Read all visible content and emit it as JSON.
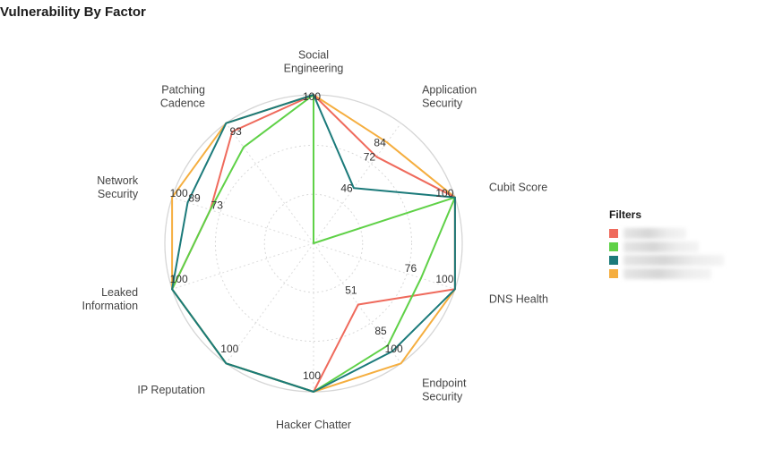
{
  "title": "Vulnerability By Factor",
  "legend": {
    "title": "Filters",
    "items": [
      {
        "color": "#ef6a5c",
        "label": ""
      },
      {
        "color": "#5fd147",
        "label": ""
      },
      {
        "color": "#1b7a7a",
        "label": ""
      },
      {
        "color": "#f5ae3f",
        "label": ""
      }
    ]
  },
  "chart_data": {
    "type": "radar",
    "title": "Vulnerability By Factor",
    "axes": [
      "Social Engineering",
      "Application Security",
      "Cubit Score",
      "DNS Health",
      "Endpoint Security",
      "Hacker Chatter",
      "IP Reputation",
      "Leaked Information",
      "Network Security",
      "Patching Cadence"
    ],
    "axis_display": [
      [
        "Social",
        "Engineering"
      ],
      [
        "Application",
        "Security"
      ],
      [
        "Cubit Score"
      ],
      [
        "DNS Health"
      ],
      [
        "Endpoint",
        "Security"
      ],
      [
        "Hacker Chatter"
      ],
      [
        "IP Reputation"
      ],
      [
        "Leaked",
        "Information"
      ],
      [
        "Network",
        "Security"
      ],
      [
        "Patching",
        "Cadence"
      ]
    ],
    "range": [
      0,
      100
    ],
    "series": [
      {
        "color": "#ef6a5c",
        "values": [
          100,
          72,
          100,
          100,
          51,
          100,
          100,
          100,
          73,
          93
        ]
      },
      {
        "color": "#5fd147",
        "values": [
          100,
          0,
          100,
          76,
          85,
          100,
          100,
          100,
          73,
          80
        ]
      },
      {
        "color": "#1b7a7a",
        "values": [
          100,
          46,
          100,
          100,
          90,
          100,
          100,
          100,
          89,
          100
        ]
      },
      {
        "color": "#f5ae3f",
        "values": [
          100,
          84,
          100,
          100,
          100,
          100,
          100,
          100,
          100,
          100
        ]
      }
    ],
    "data_labels": [
      {
        "axis": 0,
        "value": 100
      },
      {
        "axis": 1,
        "value": 84
      },
      {
        "axis": 1,
        "value": 72
      },
      {
        "axis": 1,
        "value": 46
      },
      {
        "axis": 2,
        "value": 100
      },
      {
        "axis": 3,
        "value": 100
      },
      {
        "axis": 3,
        "value": 76
      },
      {
        "axis": 4,
        "value": 51
      },
      {
        "axis": 4,
        "value": 85
      },
      {
        "axis": 4,
        "value": 100
      },
      {
        "axis": 5,
        "value": 100
      },
      {
        "axis": 6,
        "value": 100
      },
      {
        "axis": 7,
        "value": 100
      },
      {
        "axis": 8,
        "value": 100
      },
      {
        "axis": 8,
        "value": 89
      },
      {
        "axis": 8,
        "value": 73
      },
      {
        "axis": 9,
        "value": 93
      }
    ],
    "grid": true,
    "legend_position": "right"
  }
}
